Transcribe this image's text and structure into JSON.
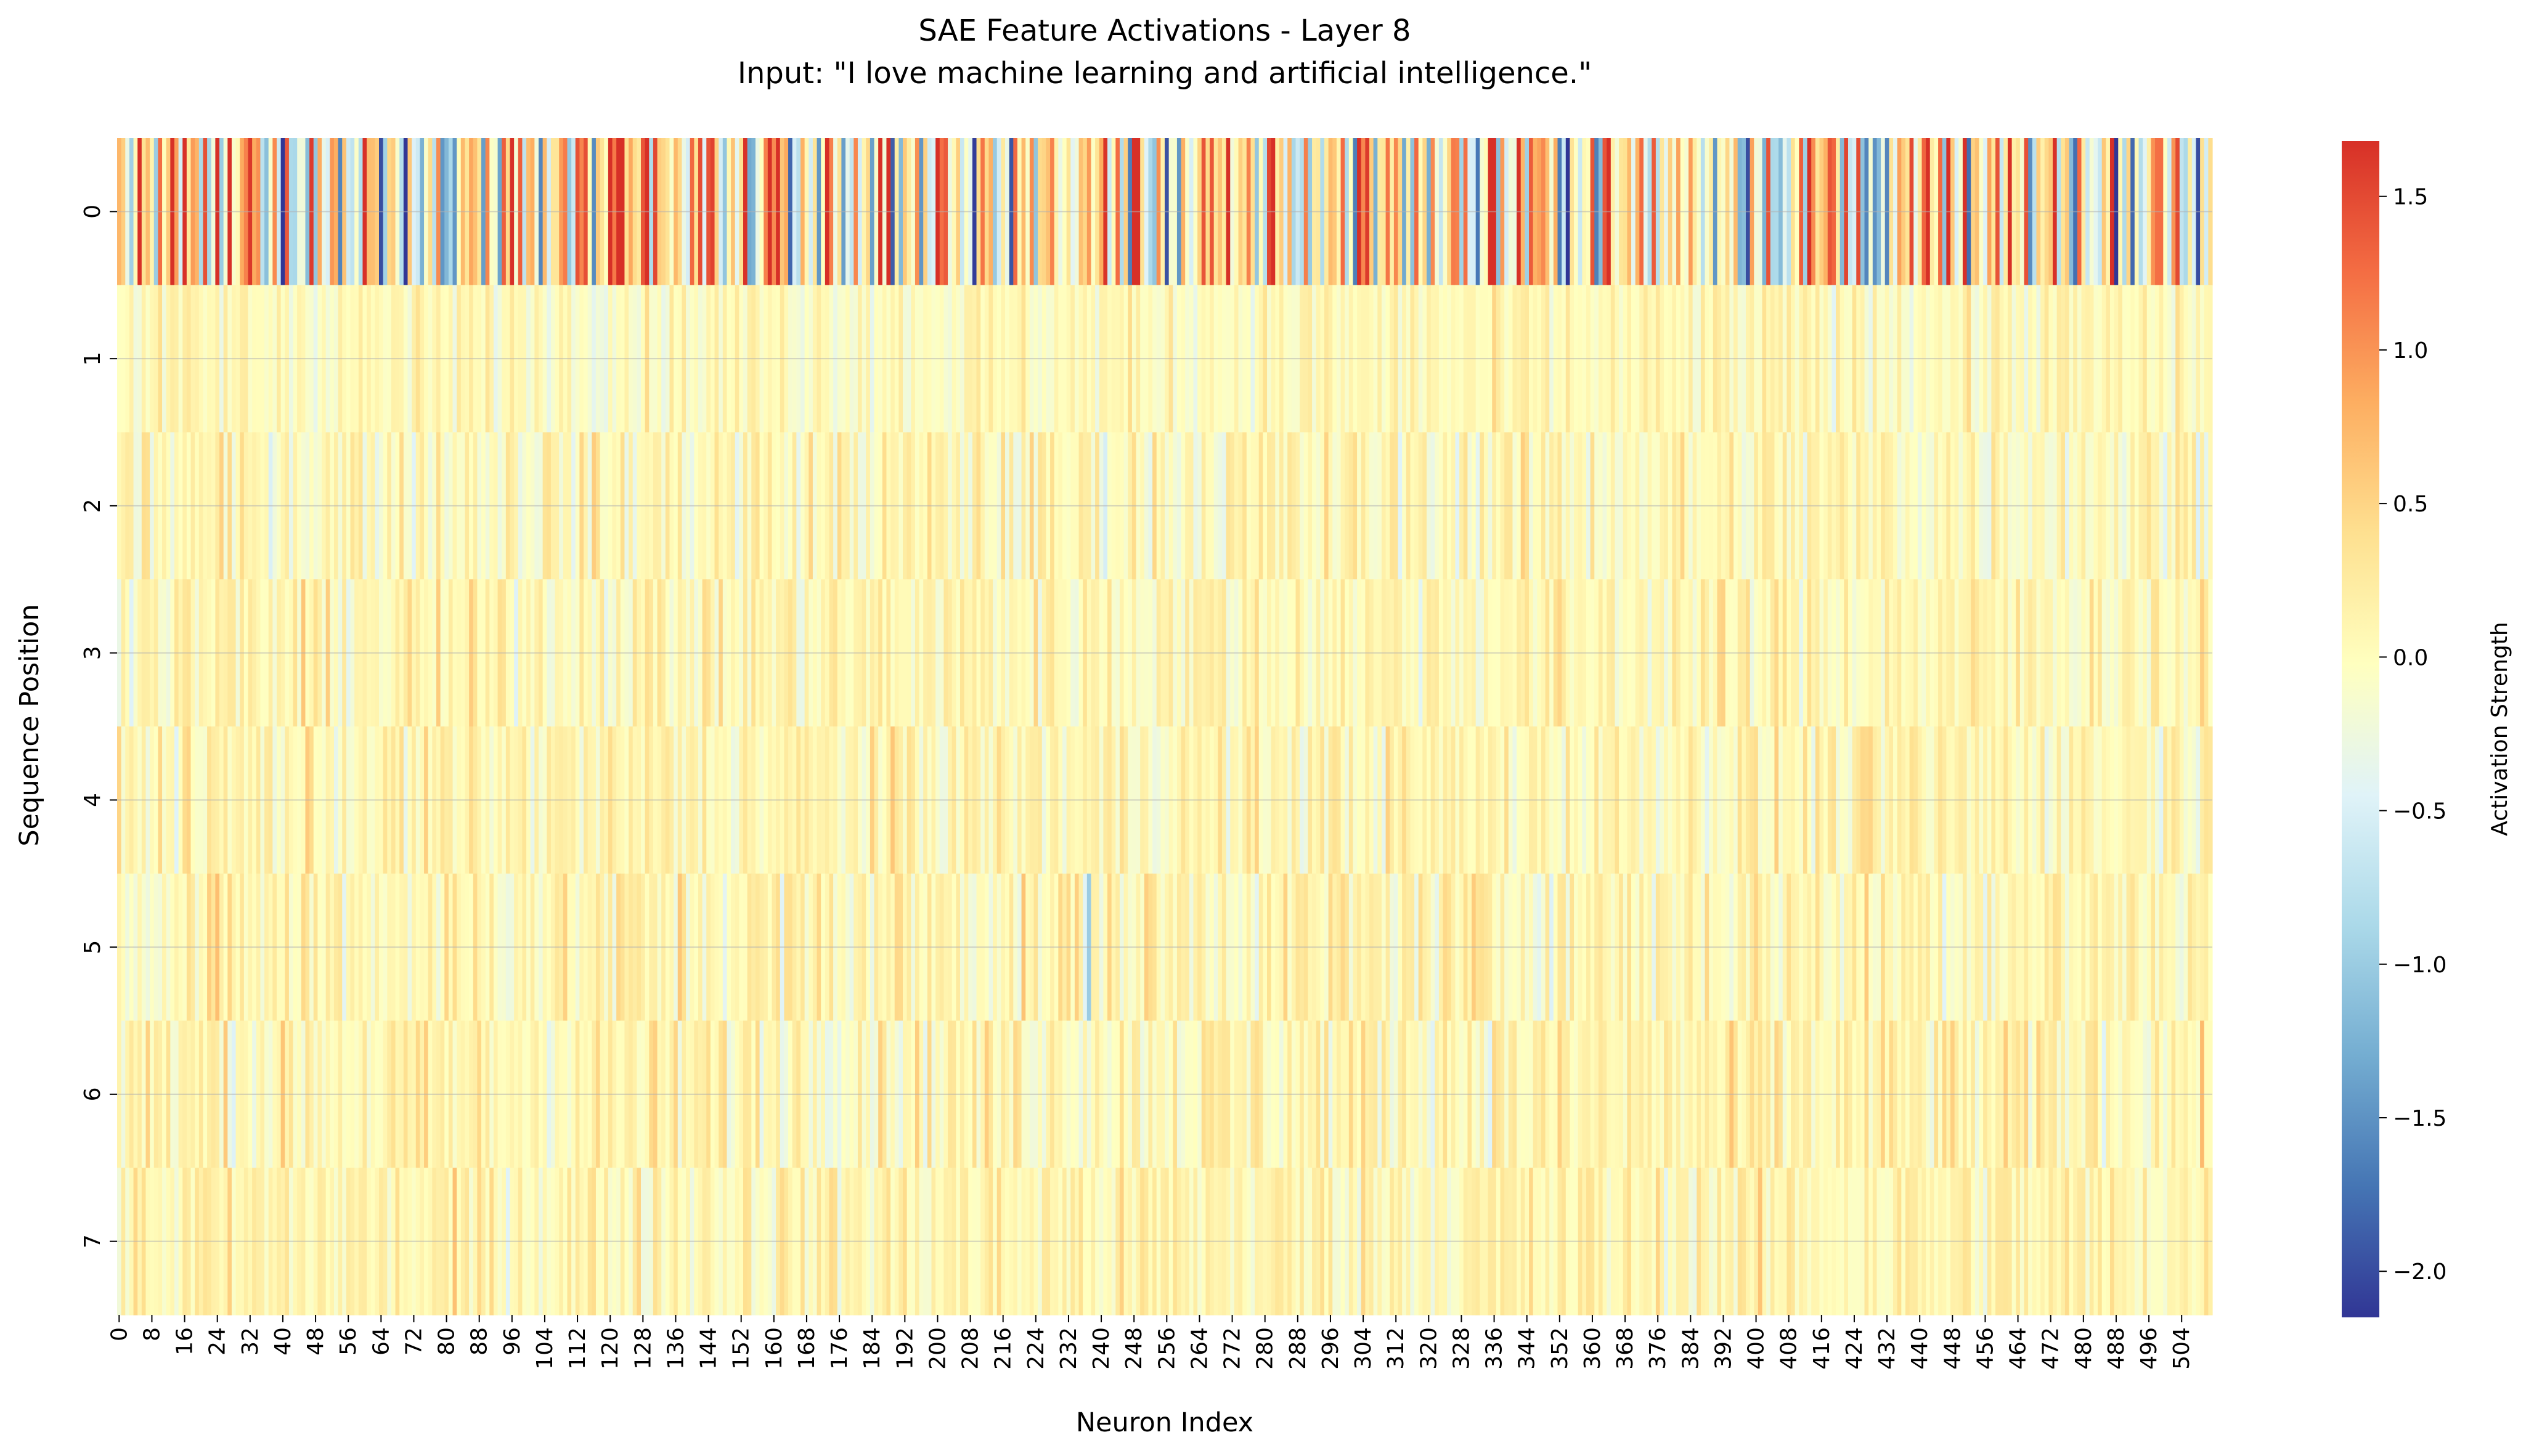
{
  "chart_data": {
    "type": "heatmap",
    "title": "SAE Feature Activations - Layer 8",
    "subtitle": "Input: \"I love machine learning and artificial intelligence.\"",
    "xlabel": "Neuron Index",
    "ylabel": "Sequence Position",
    "colorbar_label": "Activation Strength",
    "colormap": "RdYlBu_r",
    "colormap_stops": [
      "#313695",
      "#4575b4",
      "#74add1",
      "#abd9e9",
      "#e0f3f8",
      "#ffffbf",
      "#fee090",
      "#fdae61",
      "#f46d43",
      "#d73027"
    ],
    "value_range": [
      -2.15,
      1.68
    ],
    "x_categories": {
      "start": 0,
      "end": 511
    },
    "y_categories": [
      "0",
      "1",
      "2",
      "3",
      "4",
      "5",
      "6",
      "7"
    ],
    "x_tick_labels": [
      "0",
      "8",
      "16",
      "24",
      "32",
      "40",
      "48",
      "56",
      "64",
      "72",
      "80",
      "88",
      "96",
      "104",
      "112",
      "120",
      "128",
      "136",
      "144",
      "152",
      "160",
      "168",
      "176",
      "184",
      "192",
      "200",
      "208",
      "216",
      "224",
      "232",
      "240",
      "248",
      "256",
      "264",
      "272",
      "280",
      "288",
      "296",
      "304",
      "312",
      "320",
      "328",
      "336",
      "344",
      "352",
      "360",
      "368",
      "376",
      "384",
      "392",
      "400",
      "408",
      "416",
      "424",
      "432",
      "440",
      "448",
      "456",
      "464",
      "472",
      "480",
      "488",
      "496",
      "504"
    ],
    "colorbar_ticks": [
      1.5,
      1.0,
      0.5,
      0.0,
      -0.5,
      -1.0,
      -1.5,
      -2.0
    ],
    "colorbar_tick_labels": [
      "1.5",
      "1.0",
      "0.5",
      "0.0",
      "−0.5",
      "−1.0",
      "−1.5",
      "−2.0"
    ],
    "row_value_spread": [
      0.9,
      0.17,
      0.22,
      0.2,
      0.2,
      0.23,
      0.22,
      0.2
    ],
    "row_value_offset": [
      0.15,
      0.03,
      0.05,
      0.08,
      0.08,
      0.1,
      0.1,
      0.1
    ],
    "notable_cells": [
      {
        "row": 0,
        "col": 64,
        "value": -2.0
      },
      {
        "row": 0,
        "col": 209,
        "value": -2.1
      },
      {
        "row": 0,
        "col": 332,
        "value": -1.7
      },
      {
        "row": 0,
        "col": 427,
        "value": -1.6
      },
      {
        "row": 0,
        "col": 508,
        "value": -2.0
      },
      {
        "row": 0,
        "col": 103,
        "value": -1.6
      },
      {
        "row": 0,
        "col": 184,
        "value": -1.4
      },
      {
        "row": 0,
        "col": 281,
        "value": 1.5
      },
      {
        "row": 0,
        "col": 267,
        "value": 1.4
      },
      {
        "row": 0,
        "col": 305,
        "value": 1.6
      },
      {
        "row": 0,
        "col": 419,
        "value": 1.3
      },
      {
        "row": 0,
        "col": 90,
        "value": 1.1
      },
      {
        "row": 5,
        "col": 237,
        "value": -1.0
      }
    ],
    "grid": true
  }
}
